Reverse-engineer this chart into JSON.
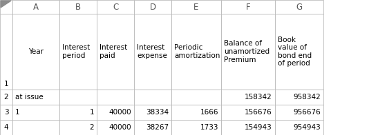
{
  "col_letters": [
    "A",
    "B",
    "C",
    "D",
    "E",
    "F",
    "G"
  ],
  "row_numbers": [
    "1",
    "2",
    "3",
    "4"
  ],
  "header_row": [
    "Year",
    "Interest\nperiod",
    "Interest\npaid",
    "Interest\nexpense",
    "Periodic\namortization",
    "Balance of\nunamortized\nPremium",
    "Book\nvalue of\nbond end\nof period"
  ],
  "data_rows": [
    [
      "at issue",
      "",
      "",
      "",
      "",
      "158342",
      "958342"
    ],
    [
      "1",
      "1",
      "40000",
      "38334",
      "1666",
      "156676",
      "956676"
    ],
    [
      "",
      "2",
      "40000",
      "38267",
      "1733",
      "154943",
      "954943"
    ]
  ],
  "col_aligns": [
    "left",
    "right",
    "right",
    "right",
    "right",
    "right",
    "right"
  ],
  "bg_color": "#ffffff",
  "grid_color": "#b0b0b0",
  "text_color": "#000000",
  "col_header_font_size": 8.5,
  "header_font_size": 7.5,
  "data_font_size": 7.5,
  "row_num_font_size": 7.5
}
